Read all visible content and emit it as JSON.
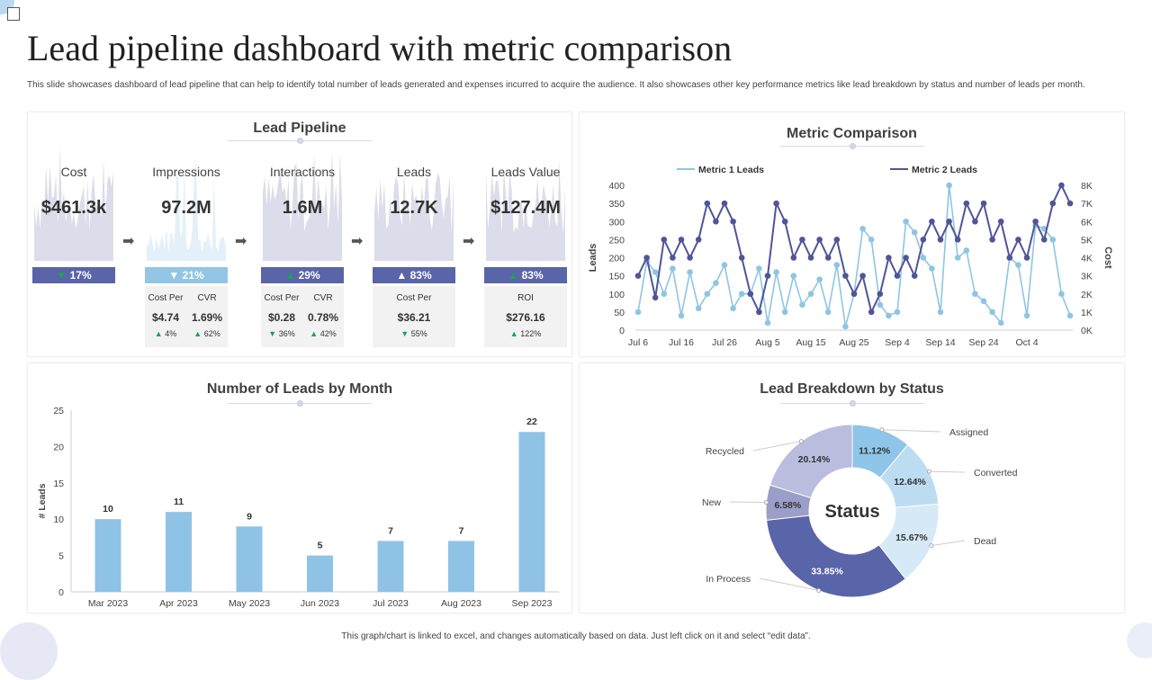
{
  "title": "Lead pipeline dashboard with metric comparison",
  "description": "This slide showcases dashboard of lead pipeline that can help to identify total number of leads generated and expenses incurred to acquire the audience. It also showcases other key performance metrics like lead breakdown by status and number of leads per month.",
  "footer": "This graph/chart is linked to excel, and changes automatically based on data. Just left click on it and select “edit data”.",
  "pipeline": {
    "title": "Lead Pipeline",
    "items": [
      {
        "label": "Cost",
        "value": "$461.3k",
        "change": "17%",
        "dir": "down",
        "bar_color": "#5a64a8",
        "sub": []
      },
      {
        "label": "Impressions",
        "value": "97.2M",
        "change": "21%",
        "dir": "down",
        "bar_color": "#92c5e6",
        "sub": [
          {
            "h": "Cost Per",
            "v": "$4.74",
            "d": "4%",
            "dir": "up"
          },
          {
            "h": "CVR",
            "v": "1.69%",
            "d": "62%",
            "dir": "up"
          }
        ]
      },
      {
        "label": "Interactions",
        "value": "1.6M",
        "change": "29%",
        "dir": "up",
        "bar_color": "#5a64a8",
        "sub": [
          {
            "h": "Cost Per",
            "v": "$0.28",
            "d": "36%",
            "dir": "down"
          },
          {
            "h": "CVR",
            "v": "0.78%",
            "d": "42%",
            "dir": "up"
          }
        ]
      },
      {
        "label": "Leads",
        "value": "12.7K",
        "change": "83%",
        "dir": "up",
        "bar_color": "#5a64a8",
        "sub": [
          {
            "h": "Cost Per",
            "v": "$36.21",
            "d": "55%",
            "dir": "down"
          }
        ]
      },
      {
        "label": "Leads Value",
        "value": "$127.4M",
        "change": "83%",
        "dir": "up",
        "bar_color": "#5a64a8",
        "sub": [
          {
            "h": "ROI",
            "v": "$276.16",
            "d": "122%",
            "dir": "up"
          }
        ]
      }
    ]
  },
  "chart_data": [
    {
      "type": "line",
      "title": "Metric Comparison",
      "ylabel": "Leads",
      "y2label": "Cost",
      "ylim": [
        0,
        400
      ],
      "y2lim": [
        0,
        8000
      ],
      "yticks": [
        "0",
        "50",
        "100",
        "150",
        "200",
        "250",
        "300",
        "350",
        "400"
      ],
      "y2ticks": [
        "0K",
        "1K",
        "2K",
        "3K",
        "4K",
        "5K",
        "6K",
        "7K",
        "8K"
      ],
      "xticks": [
        "Jul 6",
        "Jul 16",
        "Jul 26",
        "Aug 5",
        "Aug 15",
        "Aug 25",
        "Sep 4",
        "Sep 14",
        "Sep 24",
        "Oct 4"
      ],
      "legend": "top",
      "series": [
        {
          "name": "Metric 1  Leads",
          "color": "#8ec5e3",
          "values": [
            50,
            190,
            160,
            100,
            170,
            40,
            160,
            60,
            100,
            130,
            180,
            60,
            100,
            100,
            170,
            20,
            160,
            50,
            150,
            70,
            100,
            140,
            50,
            180,
            10,
            100,
            280,
            250,
            70,
            40,
            50,
            300,
            270,
            200,
            170,
            50,
            400,
            200,
            220,
            100,
            80,
            50,
            20,
            200,
            180,
            40,
            290,
            280,
            250,
            100,
            40
          ]
        },
        {
          "name": "Metric 2  Leads",
          "color": "#4f5597",
          "values": [
            150,
            200,
            90,
            250,
            200,
            250,
            200,
            250,
            350,
            300,
            350,
            300,
            200,
            100,
            50,
            150,
            350,
            300,
            200,
            250,
            200,
            250,
            200,
            250,
            150,
            100,
            150,
            50,
            100,
            200,
            150,
            200,
            150,
            250,
            300,
            250,
            300,
            250,
            350,
            300,
            350,
            250,
            300,
            200,
            250,
            200,
            300,
            250,
            350,
            400,
            350
          ]
        }
      ]
    },
    {
      "type": "bar",
      "title": "Number of Leads by Month",
      "ylabel": "# Leads",
      "ylim": [
        0,
        25
      ],
      "yticks": [
        "0",
        "5",
        "10",
        "15",
        "20",
        "25"
      ],
      "categories": [
        "Mar 2023",
        "Apr 2023",
        "May 2023",
        "Jun 2023",
        "Jul 2023",
        "Aug 2023",
        "Sep 2023"
      ],
      "values": [
        10,
        11,
        9,
        5,
        7,
        7,
        22
      ],
      "labels": [
        "10",
        "11",
        "9",
        "5",
        "7",
        "7",
        "22"
      ],
      "color": "#8fc3e6"
    },
    {
      "type": "pie",
      "title": "Lead Breakdown by Status",
      "center_label": "Status",
      "slices": [
        {
          "name": "Assigned",
          "value": 11.12,
          "label": "11.12%",
          "color": "#8ec5e8"
        },
        {
          "name": "Converted",
          "value": 12.64,
          "label": "12.64%",
          "color": "#bcdcf2"
        },
        {
          "name": "Dead",
          "value": 15.67,
          "label": "15.67%",
          "color": "#d6e9f6"
        },
        {
          "name": "In Process",
          "value": 33.85,
          "label": "33.85%",
          "color": "#5a64a8"
        },
        {
          "name": "New",
          "value": 6.58,
          "label": "6.58%",
          "color": "#9b9ec9"
        },
        {
          "name": "Recycled",
          "value": 20.14,
          "label": "20.14%",
          "color": "#babdde"
        }
      ]
    }
  ]
}
